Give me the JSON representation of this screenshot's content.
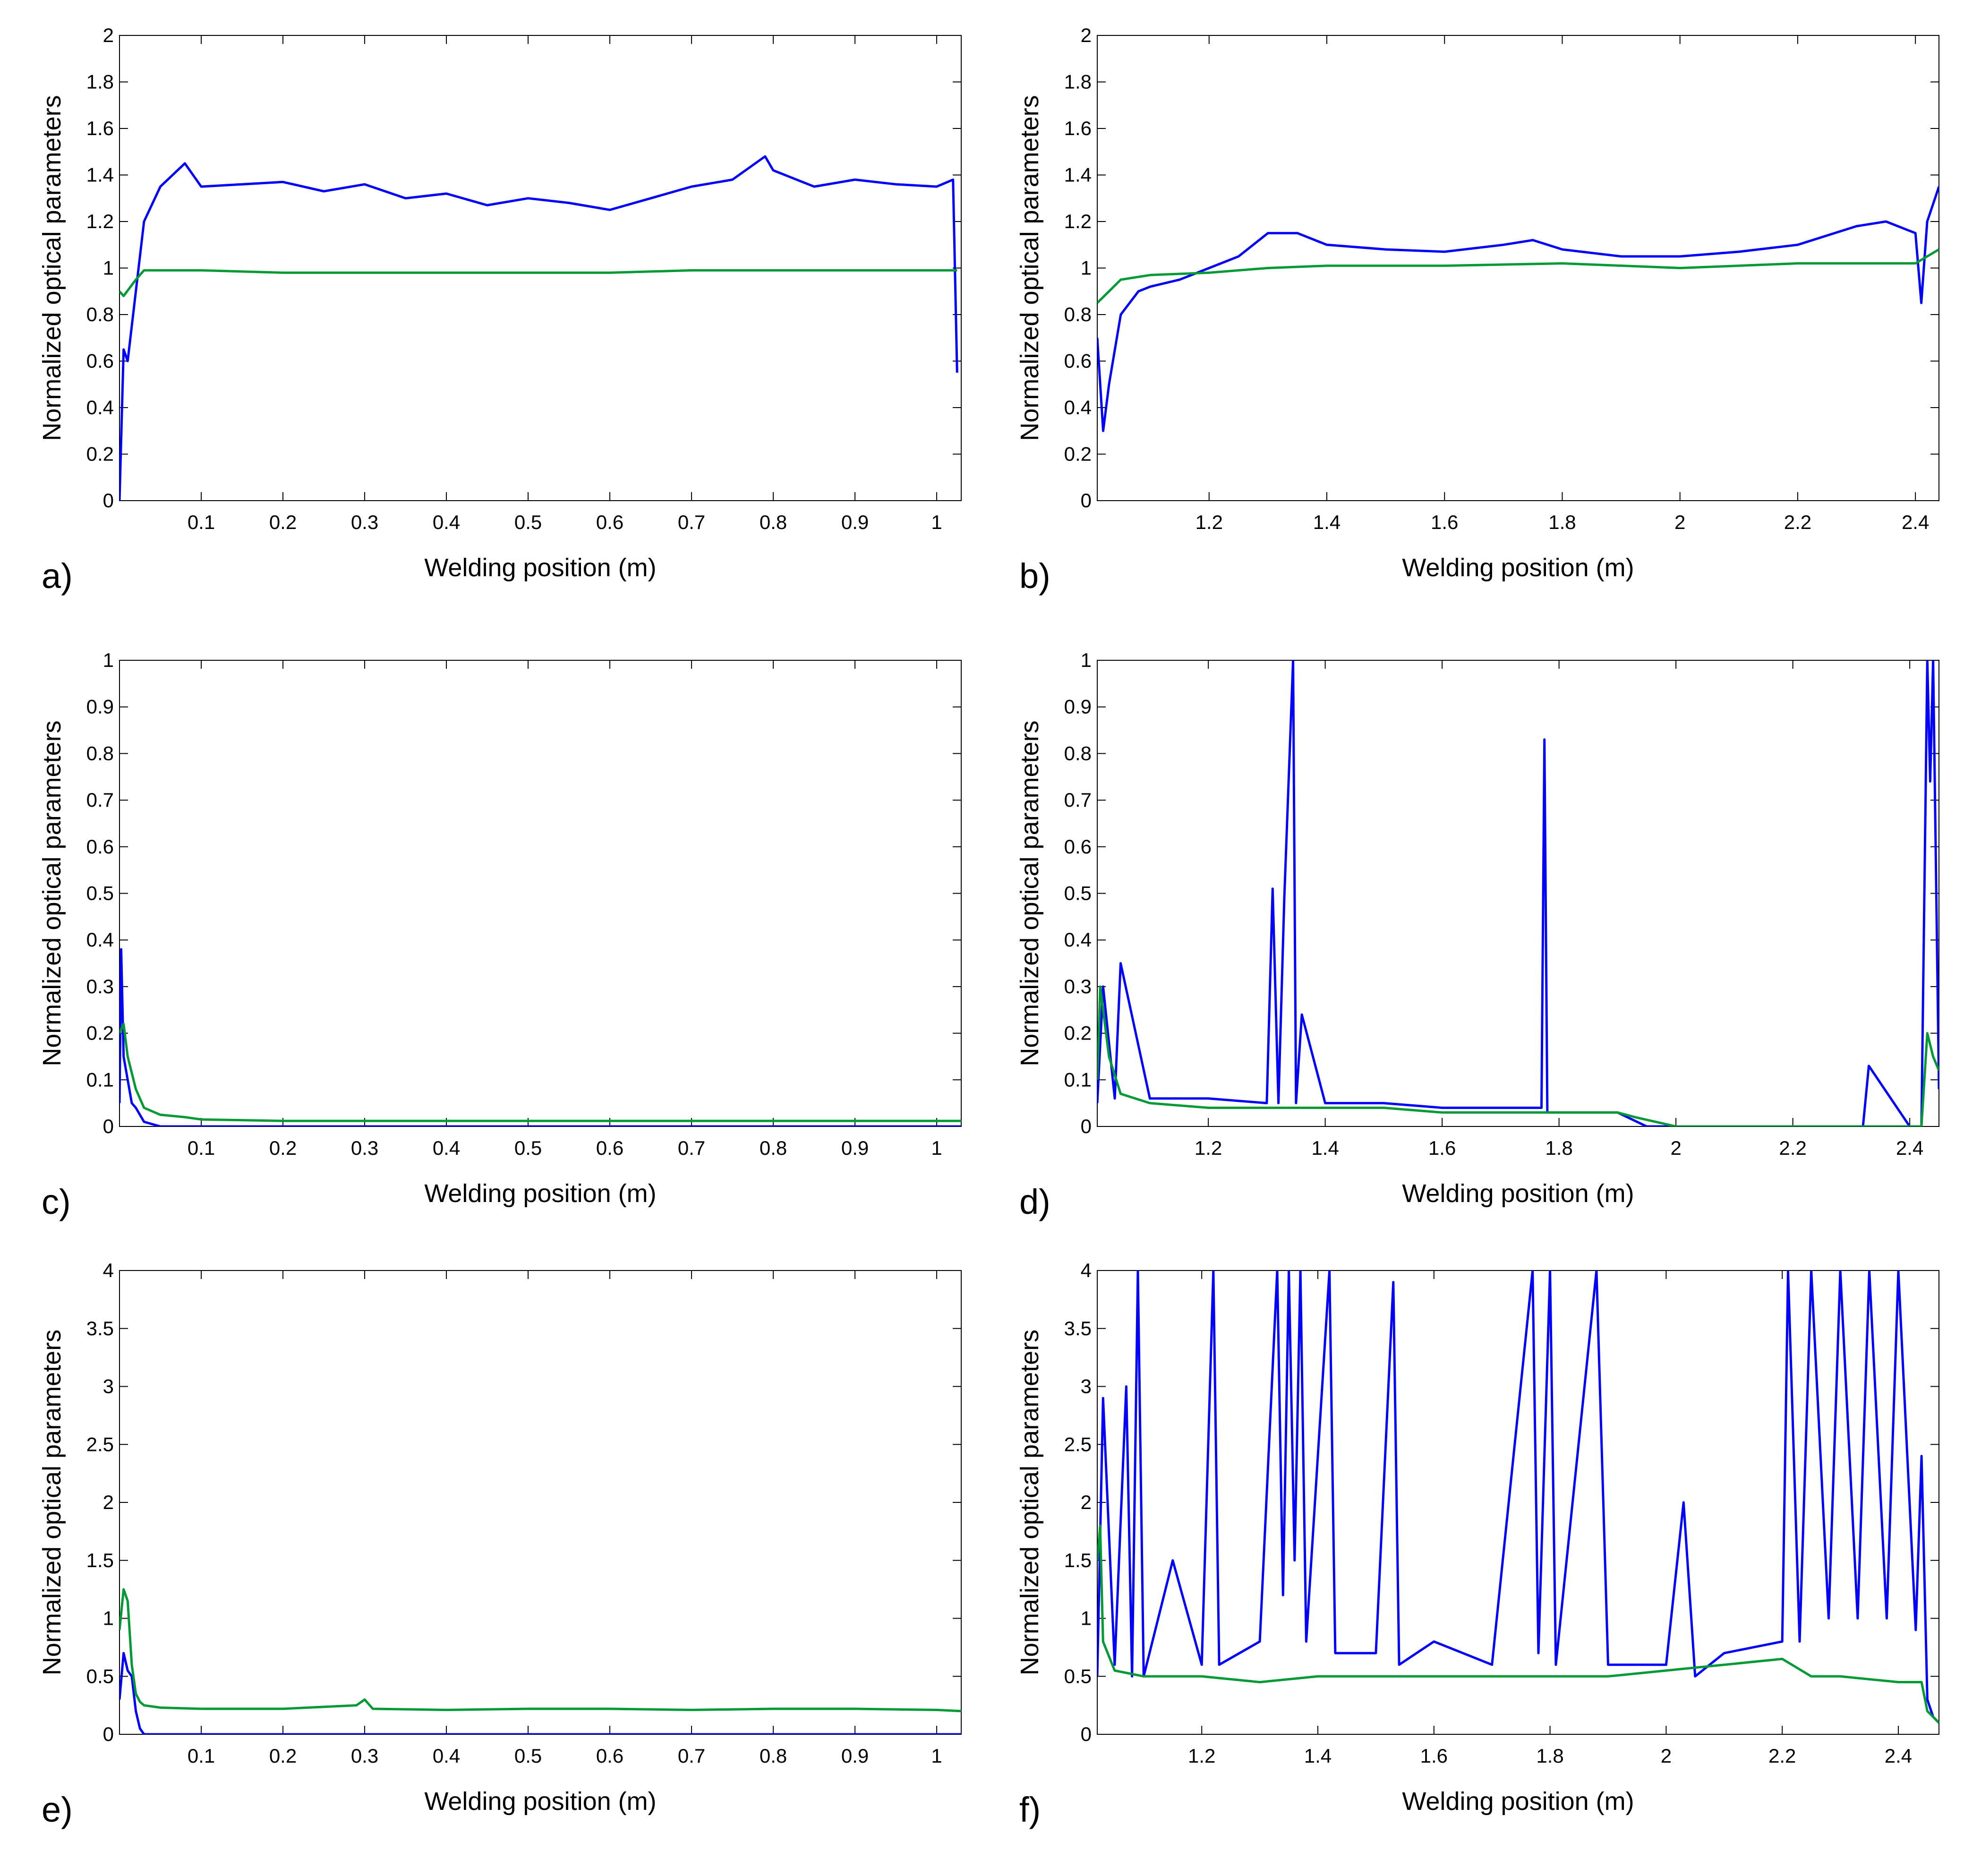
{
  "chart_data": [
    {
      "panel": "a)",
      "type": "line",
      "xlabel": "Welding position (m)",
      "ylabel": "Normalized optical parameters",
      "xlim": [
        0.0,
        1.03
      ],
      "ylim": [
        0,
        2
      ],
      "xticks": [
        "0.1",
        "0.2",
        "0.3",
        "0.4",
        "0.5",
        "0.6",
        "0.7",
        "0.8",
        "0.9",
        "1"
      ],
      "yticks": [
        "0",
        "0.2",
        "0.4",
        "0.6",
        "0.8",
        "1",
        "1.2",
        "1.4",
        "1.6",
        "1.8",
        "2"
      ],
      "series": [
        {
          "name": "blue",
          "color": "#0000ff",
          "x": [
            0.0,
            0.005,
            0.01,
            0.02,
            0.03,
            0.05,
            0.08,
            0.1,
            0.15,
            0.2,
            0.25,
            0.3,
            0.35,
            0.4,
            0.45,
            0.5,
            0.55,
            0.6,
            0.65,
            0.7,
            0.75,
            0.79,
            0.8,
            0.85,
            0.9,
            0.95,
            1.0,
            1.02,
            1.025
          ],
          "y": [
            0.0,
            0.65,
            0.6,
            0.9,
            1.2,
            1.35,
            1.45,
            1.35,
            1.36,
            1.37,
            1.33,
            1.36,
            1.3,
            1.32,
            1.27,
            1.3,
            1.28,
            1.25,
            1.3,
            1.35,
            1.38,
            1.48,
            1.42,
            1.35,
            1.38,
            1.36,
            1.35,
            1.38,
            0.55
          ]
        },
        {
          "name": "green",
          "color": "#009933",
          "x": [
            0.0,
            0.005,
            0.02,
            0.03,
            0.1,
            0.2,
            0.3,
            0.4,
            0.5,
            0.6,
            0.7,
            0.8,
            0.9,
            1.0,
            1.025
          ],
          "y": [
            0.9,
            0.88,
            0.95,
            0.99,
            0.99,
            0.98,
            0.98,
            0.98,
            0.98,
            0.98,
            0.99,
            0.99,
            0.99,
            0.99,
            0.99
          ]
        }
      ]
    },
    {
      "panel": "b)",
      "type": "line",
      "xlabel": "Welding position (m)",
      "ylabel": "Normalized optical parameters",
      "xlim": [
        1.01,
        2.44
      ],
      "ylim": [
        0,
        2
      ],
      "xticks": [
        "1.2",
        "1.4",
        "1.6",
        "1.8",
        "2",
        "2.2",
        "2.4"
      ],
      "yticks": [
        "0",
        "0.2",
        "0.4",
        "0.6",
        "0.8",
        "1",
        "1.2",
        "1.4",
        "1.6",
        "1.8",
        "2"
      ],
      "series": [
        {
          "name": "blue",
          "color": "#0000ff",
          "x": [
            1.01,
            1.02,
            1.03,
            1.05,
            1.08,
            1.1,
            1.15,
            1.2,
            1.25,
            1.3,
            1.35,
            1.4,
            1.5,
            1.6,
            1.7,
            1.75,
            1.8,
            1.9,
            2.0,
            2.1,
            2.2,
            2.3,
            2.35,
            2.4,
            2.41,
            2.42,
            2.44
          ],
          "y": [
            0.7,
            0.3,
            0.5,
            0.8,
            0.9,
            0.92,
            0.95,
            1.0,
            1.05,
            1.15,
            1.15,
            1.1,
            1.08,
            1.07,
            1.1,
            1.12,
            1.08,
            1.05,
            1.05,
            1.07,
            1.1,
            1.18,
            1.2,
            1.15,
            0.85,
            1.2,
            1.35
          ]
        },
        {
          "name": "green",
          "color": "#009933",
          "x": [
            1.01,
            1.05,
            1.1,
            1.2,
            1.3,
            1.4,
            1.6,
            1.8,
            2.0,
            2.2,
            2.4,
            2.44
          ],
          "y": [
            0.85,
            0.95,
            0.97,
            0.98,
            1.0,
            1.01,
            1.01,
            1.02,
            1.0,
            1.02,
            1.02,
            1.08
          ]
        }
      ]
    },
    {
      "panel": "c)",
      "type": "line",
      "xlabel": "Welding position (m)",
      "ylabel": "Normalized optical parameters",
      "xlim": [
        0.0,
        1.03
      ],
      "ylim": [
        0,
        1
      ],
      "xticks": [
        "0.1",
        "0.2",
        "0.3",
        "0.4",
        "0.5",
        "0.6",
        "0.7",
        "0.8",
        "0.9",
        "1"
      ],
      "yticks": [
        "0",
        "0.1",
        "0.2",
        "0.3",
        "0.4",
        "0.5",
        "0.6",
        "0.7",
        "0.8",
        "0.9",
        "1"
      ],
      "series": [
        {
          "name": "blue",
          "color": "#0000ff",
          "x": [
            0.0,
            0.002,
            0.005,
            0.01,
            0.015,
            0.02,
            0.03,
            0.05,
            0.08,
            1.03
          ],
          "y": [
            0.05,
            0.38,
            0.15,
            0.1,
            0.05,
            0.04,
            0.01,
            0.0,
            0.0,
            0.0
          ]
        },
        {
          "name": "green",
          "color": "#009933",
          "x": [
            0.0,
            0.005,
            0.01,
            0.02,
            0.03,
            0.05,
            0.08,
            0.1,
            0.2,
            0.4,
            0.6,
            0.8,
            1.0,
            1.03
          ],
          "y": [
            0.2,
            0.22,
            0.15,
            0.08,
            0.04,
            0.025,
            0.02,
            0.015,
            0.012,
            0.012,
            0.012,
            0.012,
            0.012,
            0.012
          ]
        }
      ]
    },
    {
      "panel": "d)",
      "type": "line",
      "xlabel": "Welding position (m)",
      "ylabel": "Normalized optical parameters",
      "xlim": [
        1.01,
        2.45
      ],
      "ylim": [
        0,
        1
      ],
      "xticks": [
        "1.2",
        "1.4",
        "1.6",
        "1.8",
        "2",
        "2.2",
        "2.4"
      ],
      "yticks": [
        "0",
        "0.1",
        "0.2",
        "0.3",
        "0.4",
        "0.5",
        "0.6",
        "0.7",
        "0.8",
        "0.9",
        "1"
      ],
      "series": [
        {
          "name": "blue",
          "color": "#0000ff",
          "x": [
            1.01,
            1.02,
            1.04,
            1.05,
            1.1,
            1.2,
            1.3,
            1.31,
            1.32,
            1.33,
            1.345,
            1.35,
            1.36,
            1.4,
            1.5,
            1.6,
            1.7,
            1.77,
            1.775,
            1.78,
            1.8,
            1.9,
            1.95,
            2.1,
            2.32,
            2.33,
            2.4,
            2.42,
            2.43,
            2.435,
            2.44,
            2.45
          ],
          "y": [
            0.05,
            0.3,
            0.06,
            0.35,
            0.06,
            0.06,
            0.05,
            0.51,
            0.05,
            0.49,
            1.0,
            0.05,
            0.24,
            0.05,
            0.05,
            0.04,
            0.04,
            0.04,
            0.83,
            0.03,
            0.03,
            0.03,
            0.0,
            0.0,
            0.0,
            0.13,
            0.0,
            0.0,
            1.0,
            0.74,
            1.0,
            0.08
          ]
        },
        {
          "name": "green",
          "color": "#009933",
          "x": [
            1.01,
            1.015,
            1.03,
            1.05,
            1.1,
            1.2,
            1.3,
            1.4,
            1.5,
            1.6,
            1.7,
            1.8,
            1.9,
            1.93,
            2.0,
            2.2,
            2.4,
            2.42,
            2.43,
            2.44,
            2.45
          ],
          "y": [
            0.1,
            0.3,
            0.15,
            0.07,
            0.05,
            0.04,
            0.04,
            0.04,
            0.04,
            0.03,
            0.03,
            0.03,
            0.03,
            0.02,
            0.0,
            0.0,
            0.0,
            0.0,
            0.2,
            0.15,
            0.12
          ]
        }
      ]
    },
    {
      "panel": "e)",
      "type": "line",
      "xlabel": "Welding position (m)",
      "ylabel": "Normalized optical parameters",
      "xlim": [
        0.0,
        1.03
      ],
      "ylim": [
        0,
        4
      ],
      "xticks": [
        "0.1",
        "0.2",
        "0.3",
        "0.4",
        "0.5",
        "0.6",
        "0.7",
        "0.8",
        "0.9",
        "1"
      ],
      "yticks": [
        "0",
        "0.5",
        "1",
        "1.5",
        "2",
        "2.5",
        "3",
        "3.5",
        "4"
      ],
      "series": [
        {
          "name": "blue",
          "color": "#0000ff",
          "x": [
            0.0,
            0.005,
            0.01,
            0.015,
            0.02,
            0.025,
            0.03,
            1.03
          ],
          "y": [
            0.3,
            0.7,
            0.55,
            0.5,
            0.2,
            0.05,
            0.0,
            0.0
          ]
        },
        {
          "name": "green",
          "color": "#009933",
          "x": [
            0.0,
            0.005,
            0.01,
            0.015,
            0.02,
            0.025,
            0.03,
            0.05,
            0.1,
            0.2,
            0.29,
            0.3,
            0.31,
            0.4,
            0.5,
            0.6,
            0.7,
            0.8,
            0.9,
            1.0,
            1.03
          ],
          "y": [
            0.9,
            1.25,
            1.15,
            0.6,
            0.35,
            0.28,
            0.25,
            0.23,
            0.22,
            0.22,
            0.25,
            0.3,
            0.22,
            0.21,
            0.22,
            0.22,
            0.21,
            0.22,
            0.22,
            0.21,
            0.2
          ]
        }
      ]
    },
    {
      "panel": "f)",
      "type": "line",
      "xlabel": "Welding position (m)",
      "ylabel": "Normalized optical parameters",
      "xlim": [
        1.02,
        2.47
      ],
      "ylim": [
        0,
        4
      ],
      "xticks": [
        "1.2",
        "1.4",
        "1.6",
        "1.8",
        "2",
        "2.2",
        "2.4"
      ],
      "yticks": [
        "0",
        "0.5",
        "1",
        "1.5",
        "2",
        "2.5",
        "3",
        "3.5",
        "4"
      ],
      "series": [
        {
          "name": "blue",
          "color": "#0000ff",
          "x": [
            1.02,
            1.03,
            1.05,
            1.07,
            1.08,
            1.09,
            1.1,
            1.15,
            1.2,
            1.22,
            1.23,
            1.3,
            1.33,
            1.34,
            1.35,
            1.36,
            1.37,
            1.38,
            1.42,
            1.43,
            1.5,
            1.53,
            1.54,
            1.6,
            1.7,
            1.77,
            1.78,
            1.8,
            1.81,
            1.88,
            1.9,
            2.0,
            2.03,
            2.05,
            2.1,
            2.2,
            2.21,
            2.23,
            2.25,
            2.28,
            2.3,
            2.33,
            2.35,
            2.38,
            2.4,
            2.43,
            2.44,
            2.45,
            2.46,
            2.47
          ],
          "y": [
            0.5,
            2.9,
            0.6,
            3.0,
            0.5,
            4.0,
            0.5,
            1.5,
            0.6,
            4.0,
            0.6,
            0.8,
            4.0,
            1.2,
            4.0,
            1.5,
            4.0,
            0.8,
            4.0,
            0.7,
            0.7,
            3.9,
            0.6,
            0.8,
            0.6,
            4.0,
            0.7,
            4.0,
            0.6,
            4.0,
            0.6,
            0.6,
            2.0,
            0.5,
            0.7,
            0.8,
            4.0,
            0.8,
            4.0,
            1.0,
            4.0,
            1.0,
            4.0,
            1.0,
            4.0,
            0.9,
            2.4,
            0.3,
            0.15,
            0.1
          ]
        },
        {
          "name": "green",
          "color": "#009933",
          "x": [
            1.02,
            1.025,
            1.03,
            1.05,
            1.1,
            1.2,
            1.3,
            1.4,
            1.5,
            1.6,
            1.7,
            1.8,
            1.9,
            2.0,
            2.1,
            2.2,
            2.25,
            2.3,
            2.4,
            2.44,
            2.45,
            2.47
          ],
          "y": [
            1.5,
            1.8,
            0.8,
            0.55,
            0.5,
            0.5,
            0.45,
            0.5,
            0.5,
            0.5,
            0.5,
            0.5,
            0.5,
            0.55,
            0.6,
            0.65,
            0.5,
            0.5,
            0.45,
            0.45,
            0.2,
            0.1
          ]
        }
      ]
    }
  ]
}
